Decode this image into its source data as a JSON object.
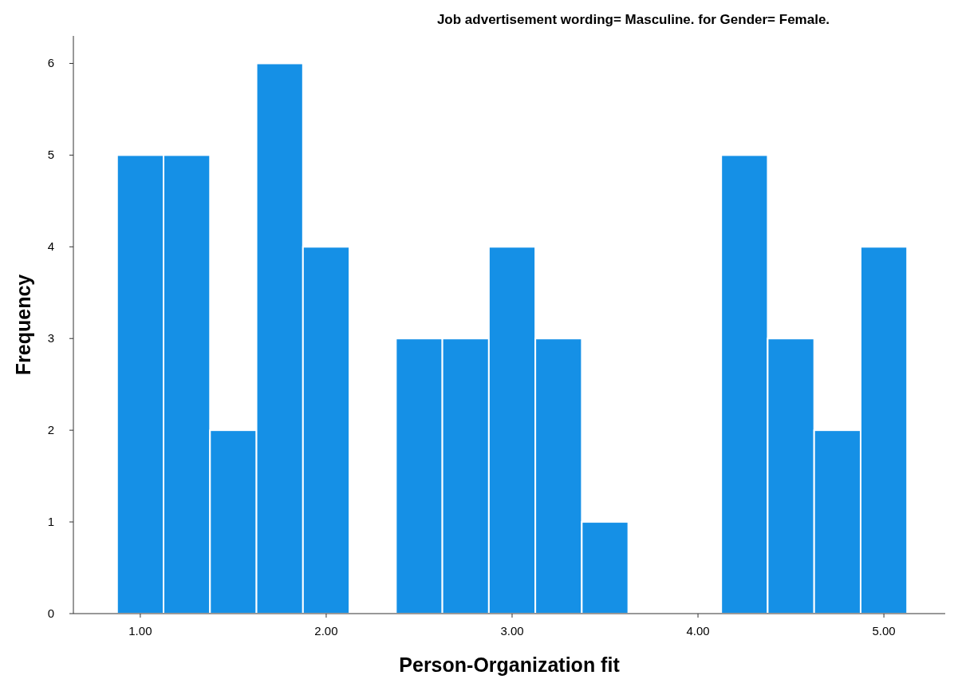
{
  "chart_data": {
    "type": "histogram",
    "title": "Job advertisement wording= Masculine.  for Gender= Female.",
    "xlabel": "Person-Organization fit",
    "ylabel": "Frequency",
    "bins": [
      0.875,
      1.125,
      1.375,
      1.625,
      1.875,
      2.125,
      2.375,
      2.625,
      2.875,
      3.125,
      3.375,
      3.625,
      3.875,
      4.125,
      4.375,
      4.625,
      4.875,
      5.125
    ],
    "values": [
      5,
      5,
      2,
      6,
      4,
      0,
      3,
      3,
      4,
      3,
      1,
      0,
      0,
      5,
      3,
      2,
      4
    ],
    "color": "#1590e6",
    "xlim": [
      0.64,
      5.33
    ],
    "xticks": [
      {
        "value": 1,
        "label": "1.00"
      },
      {
        "value": 2,
        "label": "2.00"
      },
      {
        "value": 3,
        "label": "3.00"
      },
      {
        "value": 4,
        "label": "4.00"
      },
      {
        "value": 5,
        "label": "5.00"
      }
    ],
    "ylim": [
      0,
      6.3
    ],
    "yticks": [
      0,
      1,
      2,
      3,
      4,
      5,
      6
    ],
    "grid": false
  }
}
